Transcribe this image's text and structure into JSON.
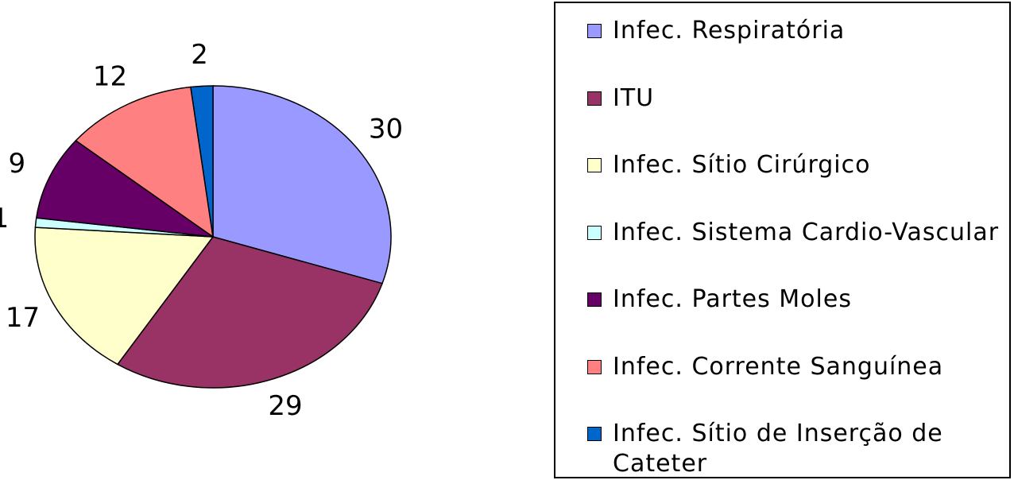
{
  "chart_data": {
    "type": "pie",
    "categories": [
      "Infec. Respiratória",
      "ITU",
      "Infec. Sítio Cirúrgico",
      "Infec. Sistema Cardio-Vascular",
      "Infec. Partes Moles",
      "Infec. Corrente Sanguínea",
      "Infec. Sítio de Inserção de Cateter"
    ],
    "values": [
      30,
      29,
      17,
      1,
      9,
      12,
      2
    ],
    "colors": [
      "#9999ff",
      "#993366",
      "#ffffcc",
      "#ccffff",
      "#660066",
      "#ff8080",
      "#0066cc"
    ],
    "legend": "right"
  }
}
